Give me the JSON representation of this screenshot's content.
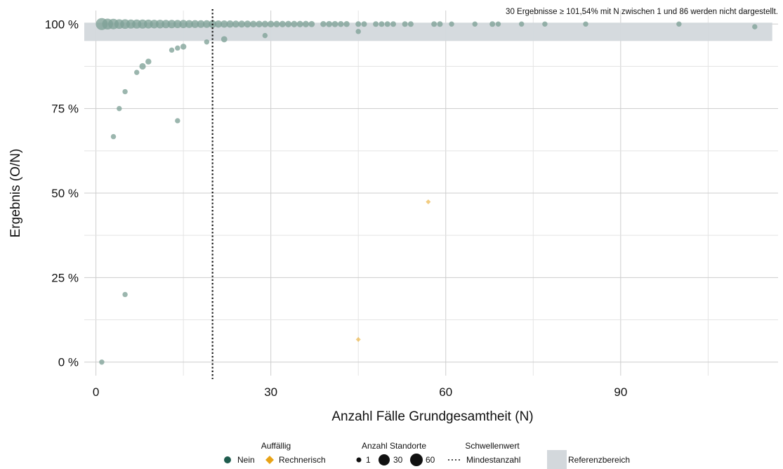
{
  "chart_data": {
    "type": "scatter",
    "title": "",
    "xlabel": "Anzahl Fälle Grundgesamtheit (N)",
    "ylabel": "Ergebnis (O/N)",
    "xlim": [
      -2,
      117
    ],
    "ylim": [
      -0.04,
      1.04
    ],
    "x_ticks": [
      0,
      30,
      60,
      90
    ],
    "x_tick_labels": [
      "0",
      "30",
      "60",
      "90"
    ],
    "y_ticks": [
      0,
      0.25,
      0.5,
      0.75,
      1.0
    ],
    "y_tick_labels": [
      "0 %",
      "25 %",
      "50 %",
      "75 %",
      "100 %"
    ],
    "grid": true,
    "annotation": "30 Ergebnisse ≥ 101,54% mit N zwischen 1 und 86 werden nicht dargestellt.",
    "reference_range": {
      "y_min": 0.95,
      "y_max": 1.0,
      "label": "Referenzbereich"
    },
    "threshold": {
      "x": 20,
      "label": "Mindestanzahl"
    },
    "colors": {
      "nein": "#1f5c4e",
      "rechnerisch": "#e8a317",
      "reference": "#d3d8dc",
      "grid": "#cccccc"
    },
    "series": [
      {
        "name": "Nein",
        "points": [
          {
            "x": 1,
            "y": 1.0,
            "n": 60
          },
          {
            "x": 2,
            "y": 1.0,
            "n": 45
          },
          {
            "x": 3,
            "y": 1.0,
            "n": 40
          },
          {
            "x": 4,
            "y": 1.0,
            "n": 30
          },
          {
            "x": 5,
            "y": 1.0,
            "n": 30
          },
          {
            "x": 6,
            "y": 1.0,
            "n": 25
          },
          {
            "x": 7,
            "y": 1.0,
            "n": 25
          },
          {
            "x": 8,
            "y": 1.0,
            "n": 25
          },
          {
            "x": 9,
            "y": 1.0,
            "n": 22
          },
          {
            "x": 10,
            "y": 1.0,
            "n": 20
          },
          {
            "x": 11,
            "y": 1.0,
            "n": 20
          },
          {
            "x": 12,
            "y": 1.0,
            "n": 18
          },
          {
            "x": 13,
            "y": 1.0,
            "n": 18
          },
          {
            "x": 14,
            "y": 1.0,
            "n": 16
          },
          {
            "x": 15,
            "y": 1.0,
            "n": 16
          },
          {
            "x": 16,
            "y": 1.0,
            "n": 14
          },
          {
            "x": 17,
            "y": 1.0,
            "n": 14
          },
          {
            "x": 18,
            "y": 1.0,
            "n": 12
          },
          {
            "x": 19,
            "y": 1.0,
            "n": 12
          },
          {
            "x": 20,
            "y": 1.0,
            "n": 12
          },
          {
            "x": 21,
            "y": 1.0,
            "n": 10
          },
          {
            "x": 22,
            "y": 1.0,
            "n": 10
          },
          {
            "x": 23,
            "y": 1.0,
            "n": 10
          },
          {
            "x": 24,
            "y": 1.0,
            "n": 8
          },
          {
            "x": 25,
            "y": 1.0,
            "n": 8
          },
          {
            "x": 26,
            "y": 1.0,
            "n": 8
          },
          {
            "x": 27,
            "y": 1.0,
            "n": 6
          },
          {
            "x": 28,
            "y": 1.0,
            "n": 6
          },
          {
            "x": 29,
            "y": 1.0,
            "n": 6
          },
          {
            "x": 30,
            "y": 1.0,
            "n": 6
          },
          {
            "x": 31,
            "y": 1.0,
            "n": 5
          },
          {
            "x": 32,
            "y": 1.0,
            "n": 5
          },
          {
            "x": 33,
            "y": 1.0,
            "n": 5
          },
          {
            "x": 34,
            "y": 1.0,
            "n": 5
          },
          {
            "x": 35,
            "y": 1.0,
            "n": 5
          },
          {
            "x": 36,
            "y": 1.0,
            "n": 5
          },
          {
            "x": 37,
            "y": 1.0,
            "n": 4
          },
          {
            "x": 39,
            "y": 1.0,
            "n": 3
          },
          {
            "x": 40,
            "y": 1.0,
            "n": 4
          },
          {
            "x": 41,
            "y": 1.0,
            "n": 4
          },
          {
            "x": 42,
            "y": 1.0,
            "n": 3
          },
          {
            "x": 43,
            "y": 1.0,
            "n": 3
          },
          {
            "x": 45,
            "y": 1.0,
            "n": 2
          },
          {
            "x": 46,
            "y": 1.0,
            "n": 2
          },
          {
            "x": 48,
            "y": 1.0,
            "n": 2
          },
          {
            "x": 49,
            "y": 1.0,
            "n": 2
          },
          {
            "x": 50,
            "y": 1.0,
            "n": 2
          },
          {
            "x": 51,
            "y": 1.0,
            "n": 2
          },
          {
            "x": 53,
            "y": 1.0,
            "n": 2
          },
          {
            "x": 54,
            "y": 1.0,
            "n": 2
          },
          {
            "x": 58,
            "y": 1.0,
            "n": 2
          },
          {
            "x": 59,
            "y": 1.0,
            "n": 2
          },
          {
            "x": 61,
            "y": 1.0,
            "n": 1
          },
          {
            "x": 65,
            "y": 1.0,
            "n": 1
          },
          {
            "x": 68,
            "y": 1.0,
            "n": 2
          },
          {
            "x": 69,
            "y": 1.0,
            "n": 1
          },
          {
            "x": 73,
            "y": 1.0,
            "n": 1
          },
          {
            "x": 77,
            "y": 1.0,
            "n": 1
          },
          {
            "x": 84,
            "y": 1.0,
            "n": 1
          },
          {
            "x": 100,
            "y": 1.0,
            "n": 1
          },
          {
            "x": 113,
            "y": 0.992,
            "n": 1
          },
          {
            "x": 22,
            "y": 0.955,
            "n": 4
          },
          {
            "x": 29,
            "y": 0.966,
            "n": 1
          },
          {
            "x": 45,
            "y": 0.978,
            "n": 1
          },
          {
            "x": 19,
            "y": 0.947,
            "n": 1
          },
          {
            "x": 15,
            "y": 0.933,
            "n": 3
          },
          {
            "x": 14,
            "y": 0.929,
            "n": 1
          },
          {
            "x": 13,
            "y": 0.923,
            "n": 1
          },
          {
            "x": 9,
            "y": 0.889,
            "n": 3
          },
          {
            "x": 8,
            "y": 0.875,
            "n": 5
          },
          {
            "x": 7,
            "y": 0.857,
            "n": 1
          },
          {
            "x": 5,
            "y": 0.8,
            "n": 1
          },
          {
            "x": 4,
            "y": 0.75,
            "n": 1
          },
          {
            "x": 14,
            "y": 0.714,
            "n": 1
          },
          {
            "x": 3,
            "y": 0.667,
            "n": 1
          },
          {
            "x": 5,
            "y": 0.2,
            "n": 1
          },
          {
            "x": 1,
            "y": 0.0,
            "n": 1
          }
        ]
      },
      {
        "name": "Rechnerisch",
        "points": [
          {
            "x": 57,
            "y": 0.474,
            "n": 1
          },
          {
            "x": 45,
            "y": 0.067,
            "n": 1
          }
        ]
      }
    ],
    "legend": {
      "position": "bottom",
      "groups": [
        {
          "title": "Auffällig",
          "items": [
            "Nein",
            "Rechnerisch"
          ]
        },
        {
          "title": "Anzahl Standorte",
          "items": [
            "1",
            "30",
            "60"
          ]
        },
        {
          "title": "Schwellenwert",
          "items": [
            "Mindestanzahl"
          ]
        },
        {
          "title": "",
          "items": [
            "Referenzbereich"
          ]
        }
      ]
    }
  }
}
